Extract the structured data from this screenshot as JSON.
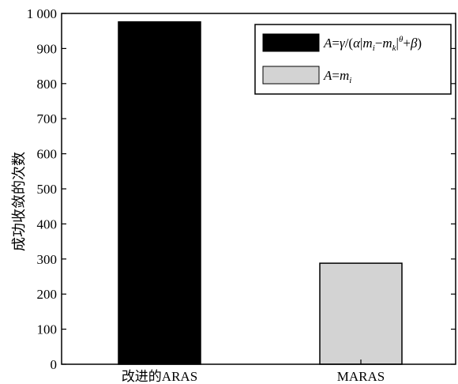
{
  "chart_data": {
    "type": "bar",
    "ylabel": "成功收敛的次数",
    "xlabel": "",
    "categories": [
      "改进的ARAS",
      "MARAS"
    ],
    "values": [
      976,
      288
    ],
    "ylim": [
      0,
      1000
    ],
    "yticks": [
      0,
      100,
      200,
      300,
      400,
      500,
      600,
      700,
      800,
      900,
      1000
    ],
    "ytick_labels": [
      "0",
      "100",
      "200",
      "300",
      "400",
      "500",
      "600",
      "700",
      "800",
      "900",
      "1 000"
    ],
    "colors": [
      "#000000",
      "#d3d3d3"
    ],
    "legend": {
      "placement": "top-right",
      "entries": [
        {
          "color": "#000000",
          "label_text": "A=γ/(α|mi−mk|θ+β)"
        },
        {
          "color": "#d3d3d3",
          "label_text": "A=mi"
        }
      ]
    },
    "grid": false
  }
}
